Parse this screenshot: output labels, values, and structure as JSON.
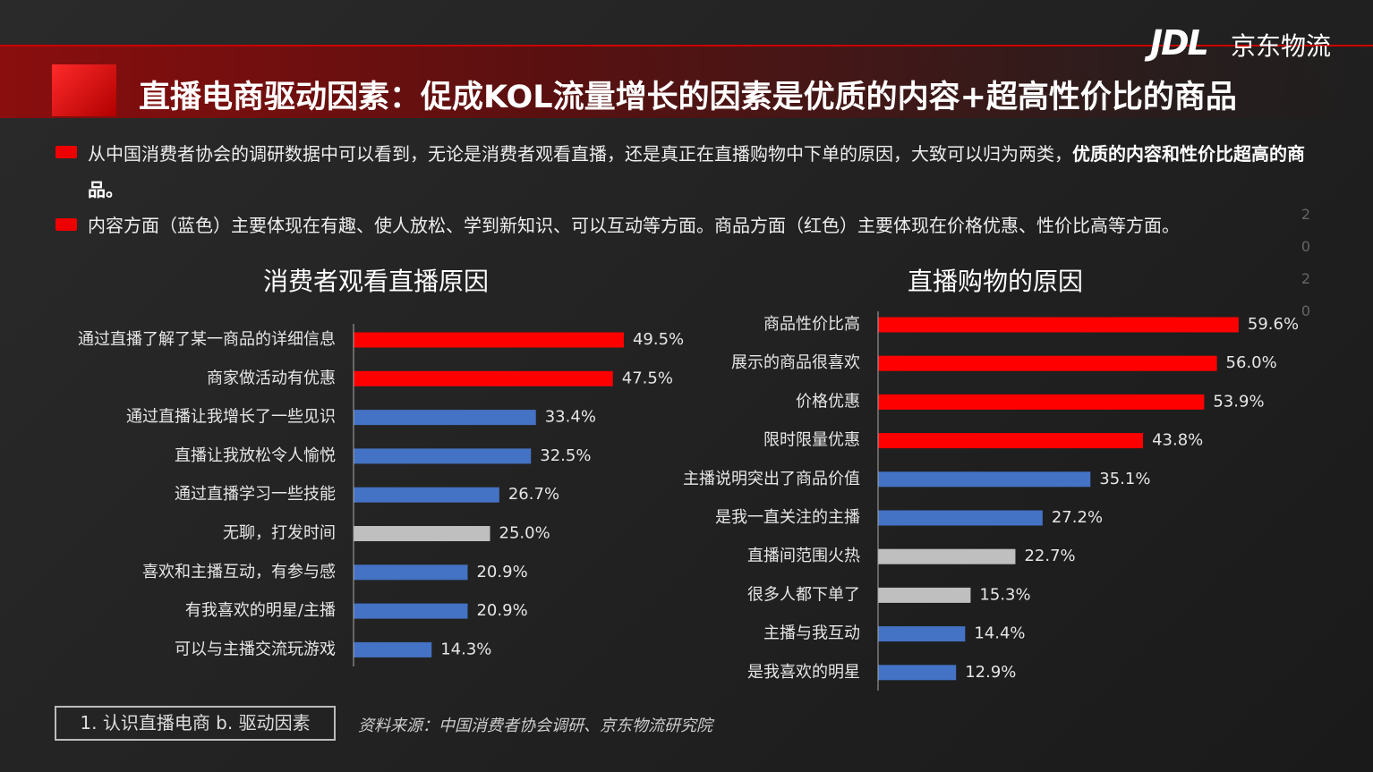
{
  "logo": {
    "mark": "JDL",
    "name": "京东物流"
  },
  "header": {
    "title": "直播电商驱动因素：促成KOL流量增长的因素是优质的内容+超高性价比的商品"
  },
  "bullets": [
    {
      "text": "从中国消费者协会的调研数据中可以看到，无论是消费者观看直播，还是真正在直播购物中下单的原因，大致可以归为两类，",
      "bold": "优质的内容和性价比超高的商品。"
    },
    {
      "text": "内容方面（蓝色）主要体现在有趣、使人放松、学到新知识、可以互动等方面。商品方面（红色）主要体现在价格优惠、性价比高等方面。"
    }
  ],
  "side_mark": "2020",
  "footer": {
    "section": "1. 认识直播电商 b. 驱动因素",
    "source": "资料来源：中国消费者协会调研、京东物流研究院"
  },
  "chart_data": [
    {
      "type": "hbar",
      "title": "消费者观看直播原因",
      "categories": [
        "通过直播了解了某一商品的详细信息",
        "商家做活动有优惠",
        "通过直播让我增长了一些见识",
        "直播让我放松令人愉悦",
        "通过直播学习一些技能",
        "无聊，打发时间",
        "喜欢和主播互动，有参与感",
        "有我喜欢的明星/主播",
        "可以与主播交流玩游戏"
      ],
      "values": [
        49.5,
        47.5,
        33.4,
        32.5,
        26.7,
        25,
        20.9,
        20.9,
        14.3
      ],
      "value_labels": [
        "49.5%",
        "47.5%",
        "33.4%",
        "32.5%",
        "26.7%",
        "25.0%",
        "20.9%",
        "20.9%",
        "14.3%"
      ],
      "colors": [
        "#ff0000",
        "#ff0000",
        "#4472c4",
        "#4472c4",
        "#4472c4",
        "#bfbfbf",
        "#4472c4",
        "#4472c4",
        "#4472c4"
      ]
    },
    {
      "type": "hbar",
      "title": "直播购物的原因",
      "categories": [
        "商品性价比高",
        "展示的商品很喜欢",
        "价格优惠",
        "限时限量优惠",
        "主播说明突出了商品价值",
        "是我一直关注的主播",
        "直播间范围火热",
        "很多人都下单了",
        "主播与我互动",
        "是我喜欢的明星"
      ],
      "values": [
        59.6,
        56,
        53.9,
        43.8,
        35.1,
        27.2,
        22.7,
        15.3,
        14.4,
        12.9
      ],
      "value_labels": [
        "59.6%",
        "56.0%",
        "53.9%",
        "43.8%",
        "35.1%",
        "27.2%",
        "22.7%",
        "15.3%",
        "14.4%",
        "12.9%"
      ],
      "colors": [
        "#ff0000",
        "#ff0000",
        "#ff0000",
        "#ff0000",
        "#4472c4",
        "#4472c4",
        "#bfbfbf",
        "#bfbfbf",
        "#4472c4",
        "#4472c4"
      ]
    }
  ]
}
